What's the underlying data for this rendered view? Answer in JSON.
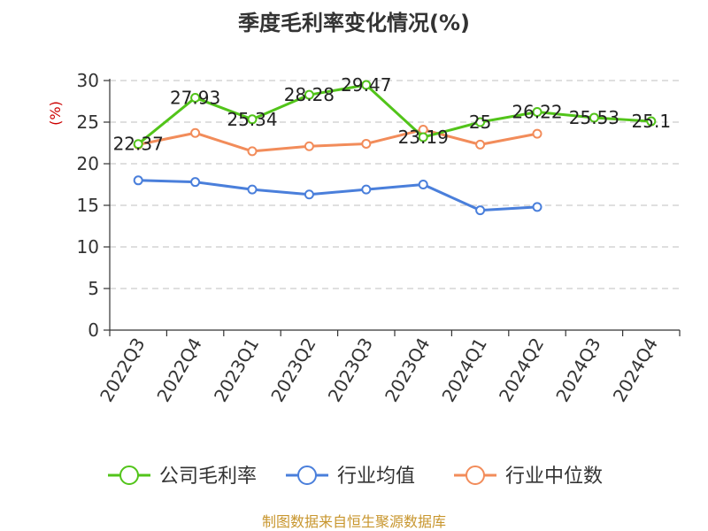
{
  "chart_data": {
    "type": "line",
    "title": "季度毛利率变化情况(%)",
    "ylabel": "(%)",
    "xlabel": "",
    "ylim": [
      0,
      30
    ],
    "yticks": [
      0,
      5,
      10,
      15,
      20,
      25,
      30
    ],
    "grid": true,
    "legend_position": "bottom",
    "categories": [
      "2022Q3",
      "2022Q4",
      "2023Q1",
      "2023Q2",
      "2023Q3",
      "2023Q4",
      "2024Q1",
      "2024Q2",
      "2024Q3",
      "2024Q4"
    ],
    "series": [
      {
        "name": "公司毛利率",
        "color": "#52c41a",
        "values": [
          22.37,
          27.93,
          25.34,
          28.28,
          29.47,
          23.19,
          25,
          26.22,
          25.53,
          25.1
        ],
        "labels": [
          "22.37",
          "27.93",
          "25.34",
          "28.28",
          "29.47",
          "23.19",
          "25",
          "26.22",
          "25.53",
          "25.1"
        ]
      },
      {
        "name": "行业均值",
        "color": "#4a7fdb",
        "values": [
          18.0,
          17.8,
          16.9,
          16.3,
          16.9,
          17.5,
          14.4,
          14.8,
          null,
          null
        ]
      },
      {
        "name": "行业中位数",
        "color": "#f28c5a",
        "values": [
          22.3,
          23.7,
          21.5,
          22.1,
          22.4,
          24.1,
          22.3,
          23.6,
          null,
          null
        ]
      }
    ]
  },
  "footer": {
    "source": "制图数据来自恒生聚源数据库",
    "source_color": "#c8962e"
  }
}
